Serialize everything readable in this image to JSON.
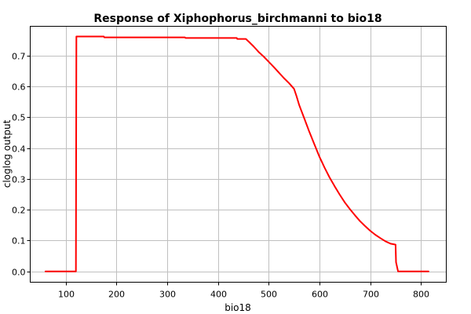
{
  "chart_data": {
    "type": "line",
    "title": "Response of Xiphophorus_birchmanni to bio18",
    "xlabel": "bio18",
    "ylabel": "cloglog output",
    "xlim": [
      30,
      850
    ],
    "ylim": [
      -0.035,
      0.795
    ],
    "xticks": [
      100,
      200,
      300,
      400,
      500,
      600,
      700,
      800
    ],
    "yticks": [
      0.0,
      0.1,
      0.2,
      0.3,
      0.4,
      0.5,
      0.6,
      0.7
    ],
    "ytick_labels": [
      "0.0",
      "0.1",
      "0.2",
      "0.3",
      "0.4",
      "0.5",
      "0.6",
      "0.7"
    ],
    "grid": true,
    "line_color": "#ff0000",
    "series": [
      {
        "x": [
          60,
          120,
          121,
          175,
          176,
          335,
          336,
          437,
          438,
          455,
          462,
          470,
          480,
          490,
          500,
          510,
          520,
          530,
          540,
          550,
          555,
          560,
          570,
          580,
          590,
          600,
          610,
          620,
          630,
          640,
          650,
          660,
          670,
          680,
          690,
          700,
          710,
          720,
          730,
          740,
          750,
          751,
          755,
          815
        ],
        "y": [
          0.0,
          0.0,
          0.762,
          0.762,
          0.759,
          0.759,
          0.757,
          0.757,
          0.754,
          0.754,
          0.743,
          0.73,
          0.712,
          0.697,
          0.68,
          0.663,
          0.645,
          0.627,
          0.611,
          0.592,
          0.568,
          0.54,
          0.497,
          0.453,
          0.412,
          0.372,
          0.337,
          0.305,
          0.276,
          0.249,
          0.224,
          0.202,
          0.182,
          0.163,
          0.147,
          0.132,
          0.119,
          0.108,
          0.098,
          0.09,
          0.087,
          0.03,
          0.0,
          0.0
        ]
      }
    ]
  }
}
